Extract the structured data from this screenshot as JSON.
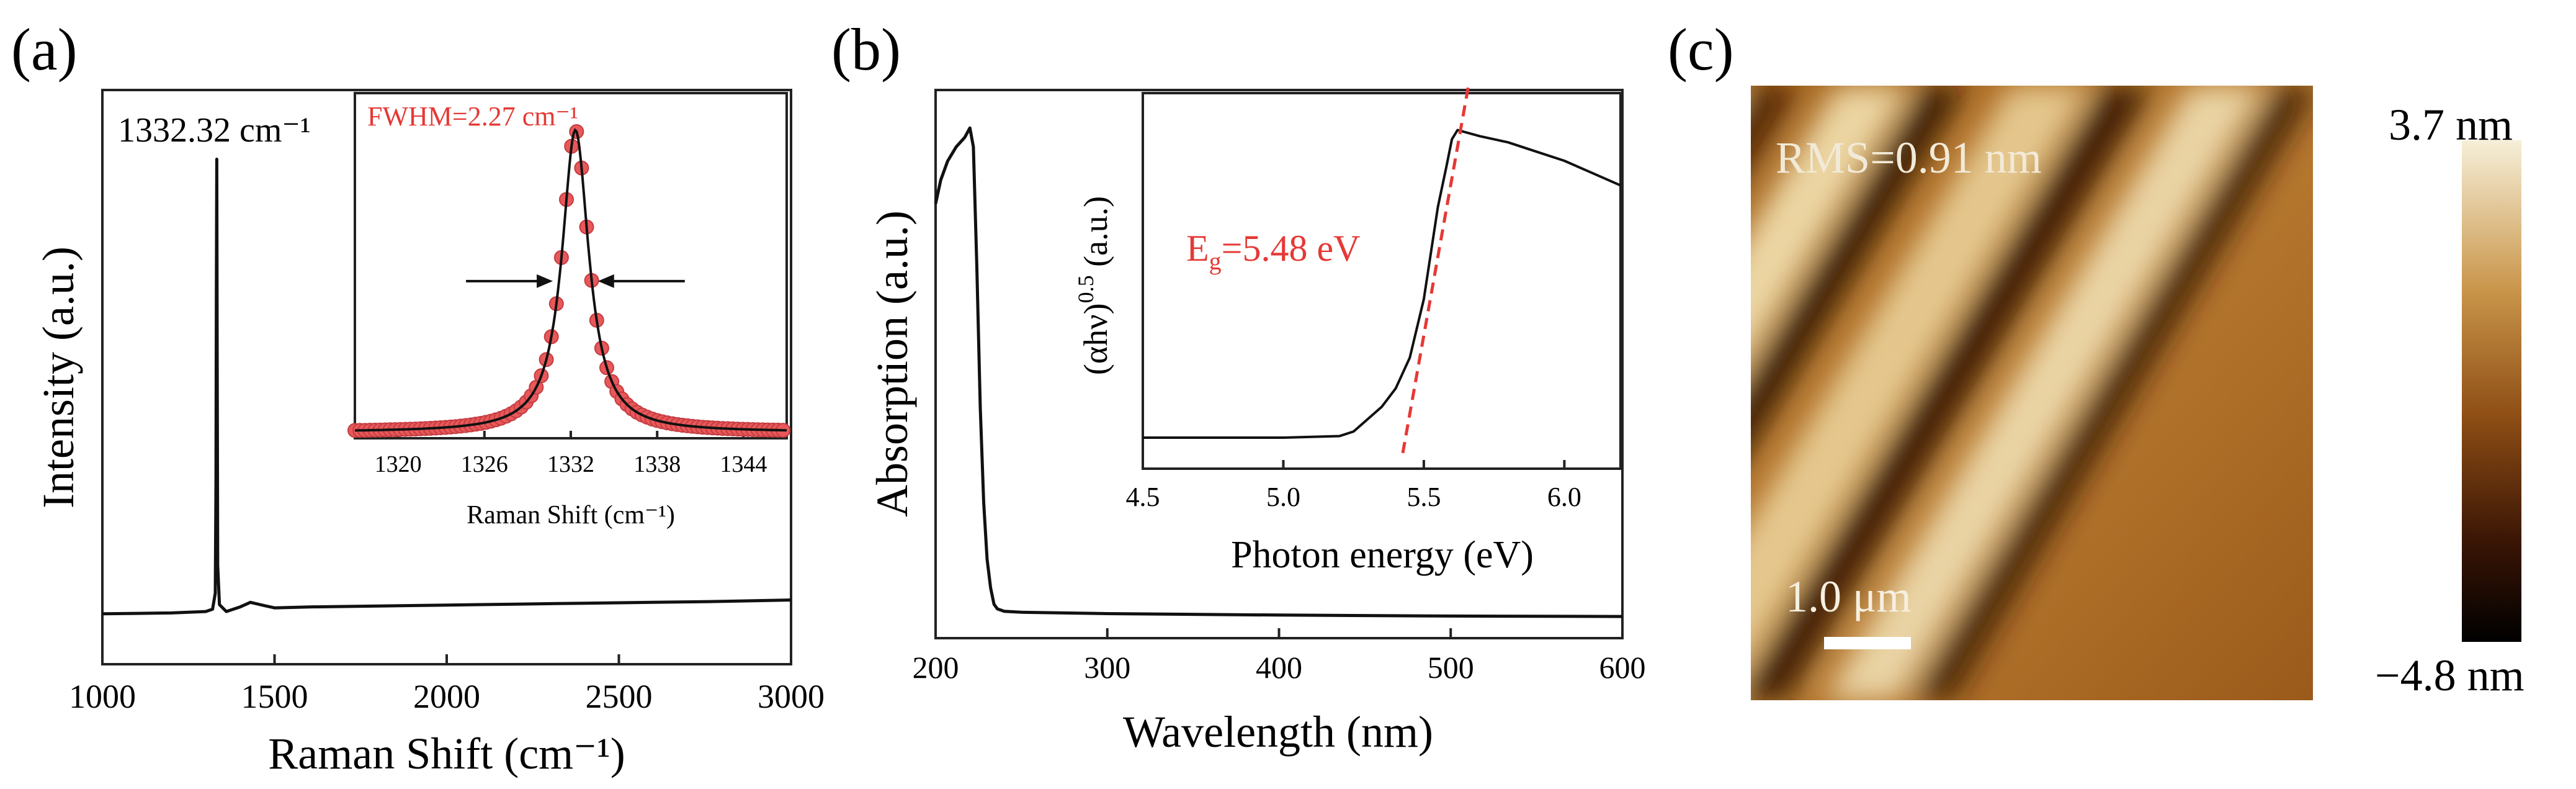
{
  "panels": {
    "a": {
      "label": "(a)",
      "chart_data": {
        "type": "line",
        "title": "",
        "xlabel": "Raman Shift (cm⁻¹)",
        "ylabel": "Intensity (a.u.)",
        "xlim": [
          1000,
          3000
        ],
        "ylim": [
          0,
          1.15
        ],
        "xticks": [
          "1000",
          "1500",
          "2000",
          "2500",
          "3000"
        ],
        "x": [
          1000,
          1100,
          1200,
          1300,
          1320,
          1328,
          1330,
          1331,
          1332.32,
          1333.5,
          1335,
          1340,
          1360,
          1400,
          1430,
          1470,
          1500,
          1600,
          1800,
          2000,
          2200,
          2400,
          2600,
          2800,
          3000
        ],
        "values": [
          0.015,
          0.016,
          0.017,
          0.02,
          0.025,
          0.06,
          0.3,
          0.7,
          1.0,
          0.55,
          0.12,
          0.035,
          0.02,
          0.03,
          0.04,
          0.033,
          0.028,
          0.03,
          0.032,
          0.034,
          0.036,
          0.038,
          0.04,
          0.042,
          0.045
        ],
        "annotations": [
          "1332.32 cm⁻¹"
        ]
      }
    },
    "a_inset": {
      "chart_data": {
        "type": "scatter",
        "xlabel": "Raman Shift (cm⁻¹)",
        "xlim": [
          1317,
          1347
        ],
        "ylim": [
          0,
          1.12
        ],
        "xticks": [
          "1320",
          "1326",
          "1332",
          "1338",
          "1344"
        ],
        "peak_center": 1332.32,
        "fwhm": 2.27,
        "point_step": 0.35,
        "annotations": [
          "FWHM=2.27 cm⁻¹"
        ],
        "colors": {
          "markers": "#e8585a",
          "marker_edge": "#c43c40",
          "fit": "#111111",
          "label": "#e53935"
        }
      }
    },
    "b": {
      "label": "(b)",
      "chart_data": {
        "type": "line",
        "xlabel": "Wavelength (nm)",
        "ylabel": "Absorption (a.u.)",
        "xlim": [
          200,
          600
        ],
        "ylim": [
          0,
          1.12
        ],
        "xticks": [
          "200",
          "300",
          "400",
          "500",
          "600"
        ],
        "x": [
          200,
          203,
          207,
          212,
          217,
          220,
          222,
          224,
          226,
          228,
          230,
          232,
          234,
          236,
          240,
          250,
          300,
          400,
          500,
          600
        ],
        "values": [
          0.88,
          0.93,
          0.97,
          1.0,
          1.02,
          1.04,
          1.0,
          0.75,
          0.45,
          0.25,
          0.13,
          0.07,
          0.035,
          0.025,
          0.02,
          0.018,
          0.015,
          0.012,
          0.01,
          0.009
        ]
      }
    },
    "b_inset": {
      "chart_data": {
        "type": "line",
        "xlabel": "Photon energy (eV)",
        "ylabel": "(αhν)",
        "ylabel_sup": "0.5",
        "ylabel_unit": "(a.u.)",
        "xlim": [
          4.5,
          6.2
        ],
        "ylim": [
          0,
          1.12
        ],
        "xticks": [
          "4.5",
          "5.0",
          "5.5",
          "6.0"
        ],
        "x": [
          4.5,
          4.8,
          5.0,
          5.2,
          5.25,
          5.3,
          5.35,
          5.4,
          5.45,
          5.5,
          5.55,
          5.58,
          5.6,
          5.62,
          5.7,
          5.8,
          5.9,
          6.0,
          6.1,
          6.2
        ],
        "values": [
          0.0,
          0.0,
          0.0,
          0.005,
          0.02,
          0.06,
          0.1,
          0.16,
          0.26,
          0.45,
          0.75,
          0.88,
          0.97,
          1.0,
          0.98,
          0.96,
          0.93,
          0.9,
          0.86,
          0.82
        ],
        "tangent": {
          "x": [
            5.425,
            5.66
          ],
          "values": [
            -0.05,
            1.15
          ]
        },
        "annotation": {
          "main": "E",
          "sub": "g",
          "rest": "=5.48 eV"
        },
        "colors": {
          "tangent": "#e53935",
          "label": "#e53935"
        }
      }
    },
    "c": {
      "label": "(c)",
      "rms": "RMS=0.91 nm",
      "scale_bar": "1.0 μm",
      "colorbar_max": "3.7 nm",
      "colorbar_min": "−4.8 nm",
      "colors": {
        "bright": "#f6efd8",
        "mid": "#b06e20",
        "dark": "#000000"
      }
    }
  }
}
